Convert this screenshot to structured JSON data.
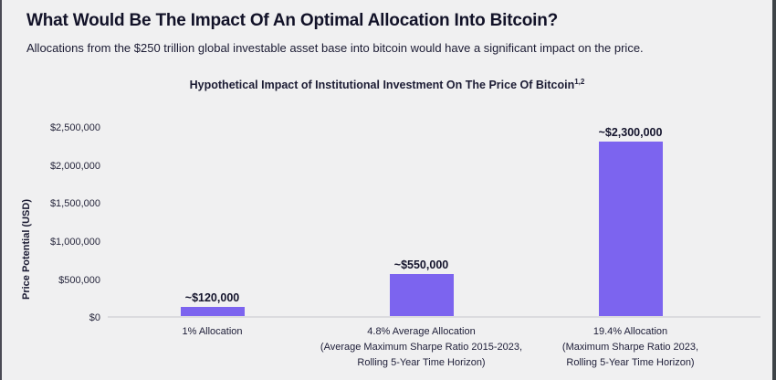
{
  "header": {
    "title": "What Would Be The Impact Of An Optimal Allocation Into Bitcoin?",
    "subtitle": "Allocations from the $250 trillion global investable asset base into bitcoin would have a significant impact on the price."
  },
  "chart_data": {
    "type": "bar",
    "title": "Hypothetical Impact of Institutional Investment On The Price Of Bitcoin",
    "title_superscript": "1,2",
    "ylabel": "Price Potential (USD)",
    "ylim": [
      0,
      2500000
    ],
    "grid": false,
    "legend": "none",
    "bar_color": "#7c64ef",
    "background_color": "#f0f0f1",
    "yticks": [
      {
        "value": 0,
        "label": "$0"
      },
      {
        "value": 500000,
        "label": "$500,000"
      },
      {
        "value": 1000000,
        "label": "$1,000,000"
      },
      {
        "value": 1500000,
        "label": "$1,500,000"
      },
      {
        "value": 2000000,
        "label": "$2,000,000"
      },
      {
        "value": 2500000,
        "label": "$2,500,000"
      }
    ],
    "bars": [
      {
        "value": 120000,
        "value_label": "~$120,000",
        "category_lines": [
          "1% Allocation"
        ]
      },
      {
        "value": 550000,
        "value_label": "~$550,000",
        "category_lines": [
          "4.8% Average Allocation",
          "(Average Maximum Sharpe Ratio 2015-2023,",
          "Rolling 5-Year Time Horizon)"
        ]
      },
      {
        "value": 2300000,
        "value_label": "~$2,300,000",
        "category_lines": [
          "19.4% Allocation",
          "(Maximum Sharpe Ratio 2023,",
          "Rolling 5-Year Time Horizon)"
        ]
      }
    ]
  }
}
